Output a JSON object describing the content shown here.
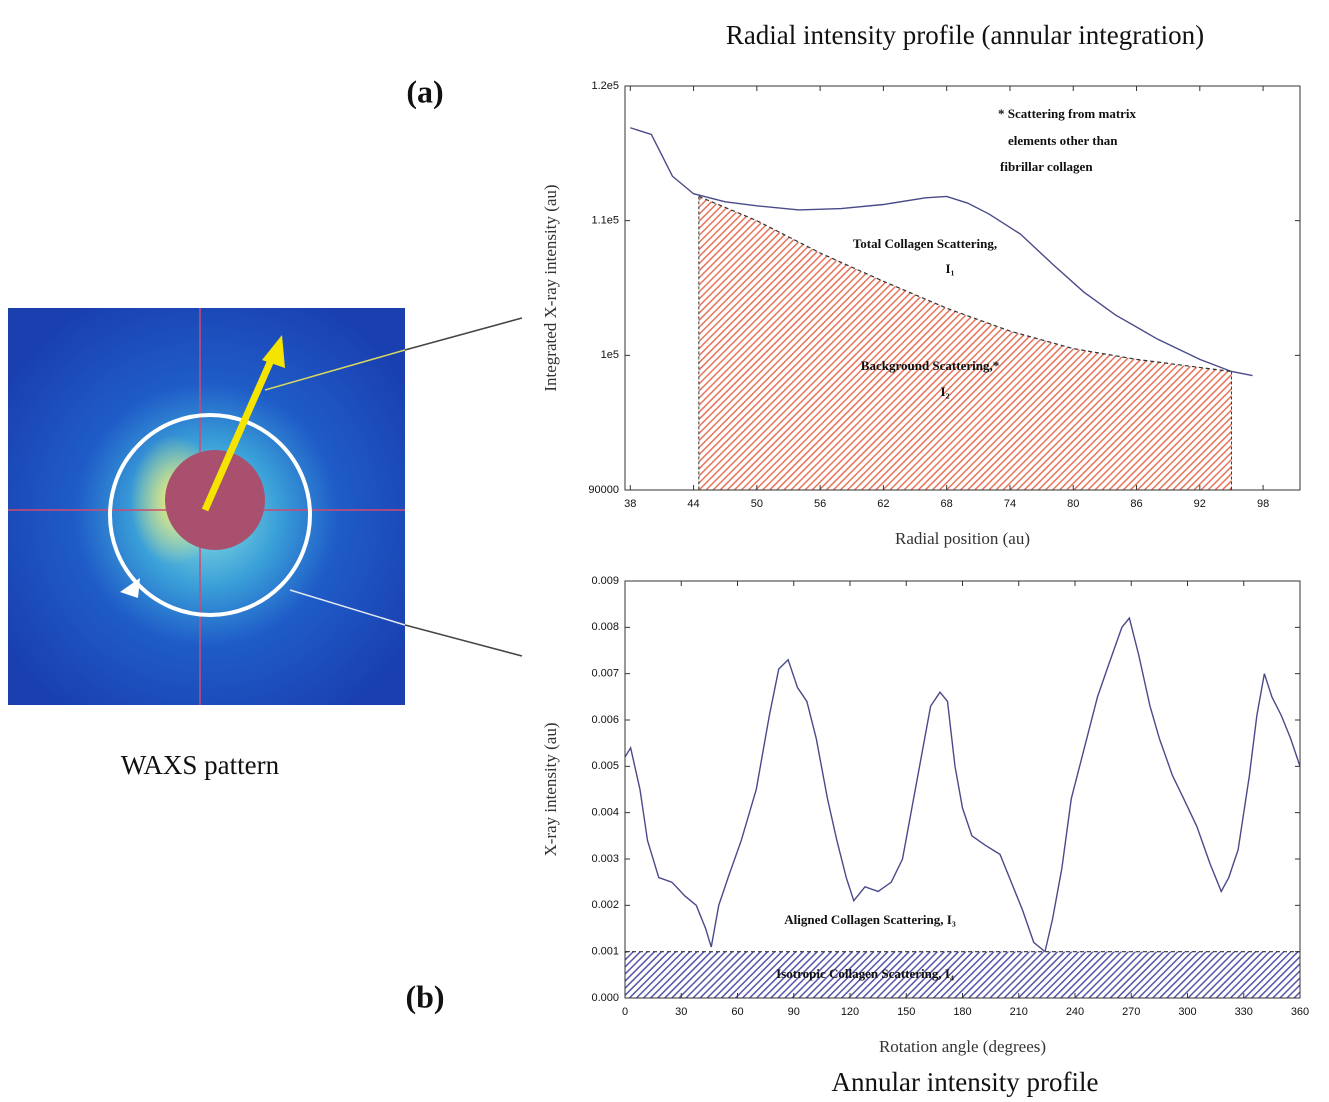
{
  "figure": {
    "title_top": "Radial intensity profile (annular integration)",
    "title_bottom": "Annular intensity profile",
    "panel_a": "(a)",
    "panel_b": "(b)",
    "image_caption": "WAXS pattern"
  },
  "chart_data": [
    {
      "type": "line",
      "xlabel": "Radial position (au)",
      "ylabel": "Integrated X-ray intensity (au)",
      "xlim": [
        37.5,
        101.5
      ],
      "xticks": [
        38,
        44,
        50,
        56,
        62,
        68,
        74,
        80,
        86,
        92,
        98
      ],
      "ylim": [
        90000,
        120000
      ],
      "yticks": [
        90000,
        {
          "value": 100000,
          "label": "1e5"
        },
        {
          "value": 110000,
          "label": "1.1e5"
        },
        {
          "value": 120000,
          "label": "1.2e5"
        }
      ],
      "series": [
        {
          "color": "#4a4a8a",
          "style": "solid",
          "x": [
            38,
            40,
            42,
            44,
            47,
            50,
            54,
            58,
            62,
            66,
            68,
            70,
            72,
            75,
            78,
            81,
            84,
            88,
            92,
            95,
            97
          ],
          "values": [
            116900,
            116400,
            113300,
            112000,
            111400,
            111100,
            110800,
            110900,
            111200,
            111700,
            111800,
            111300,
            110500,
            109000,
            106800,
            104700,
            103000,
            101200,
            99700,
            98800,
            98500
          ]
        },
        {
          "color": "#333333",
          "style": "dashed",
          "fill": "#e8735a",
          "x": [
            44.5,
            50,
            56,
            62,
            68,
            74,
            80,
            86,
            92,
            95
          ],
          "values": [
            111800,
            110000,
            107600,
            105500,
            103500,
            101800,
            100500,
            99700,
            99100,
            98800
          ]
        }
      ],
      "annotations": [
        "* Scattering from matrix",
        "elements other than",
        "fibrillar collagen",
        "Total Collagen Scattering,",
        "I₁",
        "Background Scattering,*",
        "I₂"
      ]
    },
    {
      "type": "line",
      "xlabel": "Rotation angle (degrees)",
      "ylabel": "X-ray intensity (au)",
      "xlim": [
        0,
        360
      ],
      "xticks": [
        0,
        30,
        60,
        90,
        120,
        150,
        180,
        210,
        240,
        270,
        300,
        330,
        360
      ],
      "ylim": [
        0,
        0.009
      ],
      "yticks": [
        {
          "value": 0,
          "label": "0.000"
        },
        0.001,
        0.002,
        0.003,
        0.004,
        0.005,
        0.006,
        0.007,
        0.008,
        0.009
      ],
      "series": [
        {
          "color": "#4a4a8a",
          "style": "solid",
          "x": [
            0,
            3,
            8,
            12,
            18,
            25,
            32,
            38,
            43,
            46,
            50,
            55,
            62,
            70,
            77,
            82,
            87,
            92,
            97,
            102,
            108,
            113,
            118,
            122,
            128,
            135,
            142,
            148,
            153,
            158,
            163,
            168,
            172,
            176,
            180,
            185,
            192,
            200,
            205,
            212,
            218,
            224,
            228,
            233,
            238,
            245,
            252,
            258,
            265,
            269,
            274,
            280,
            285,
            292,
            298,
            305,
            312,
            318,
            322,
            327,
            333,
            337,
            341,
            345,
            350,
            355,
            360
          ],
          "values": [
            0.0052,
            0.0054,
            0.0045,
            0.0034,
            0.0026,
            0.0025,
            0.0022,
            0.002,
            0.0015,
            0.0011,
            0.002,
            0.0026,
            0.0034,
            0.0045,
            0.0061,
            0.0071,
            0.0073,
            0.0067,
            0.0064,
            0.0056,
            0.0043,
            0.0034,
            0.0026,
            0.0021,
            0.0024,
            0.0023,
            0.0025,
            0.003,
            0.0041,
            0.0052,
            0.0063,
            0.0066,
            0.0064,
            0.005,
            0.0041,
            0.0035,
            0.0033,
            0.0031,
            0.0026,
            0.0019,
            0.0012,
            0.001,
            0.0017,
            0.0028,
            0.0043,
            0.0054,
            0.0065,
            0.0072,
            0.008,
            0.0082,
            0.0074,
            0.0063,
            0.0056,
            0.0048,
            0.0043,
            0.0037,
            0.0029,
            0.0023,
            0.0026,
            0.0032,
            0.0048,
            0.0061,
            0.007,
            0.0065,
            0.0061,
            0.0056,
            0.005
          ]
        },
        {
          "color": "#333333",
          "style": "dashed",
          "fill": "#5555aa",
          "x": [
            0,
            360
          ],
          "values": [
            0.001,
            0.001
          ]
        }
      ],
      "annotations": [
        "Aligned Collagen Scattering, I₃",
        "Isotropic Collagen Scattering, I₄"
      ]
    }
  ]
}
